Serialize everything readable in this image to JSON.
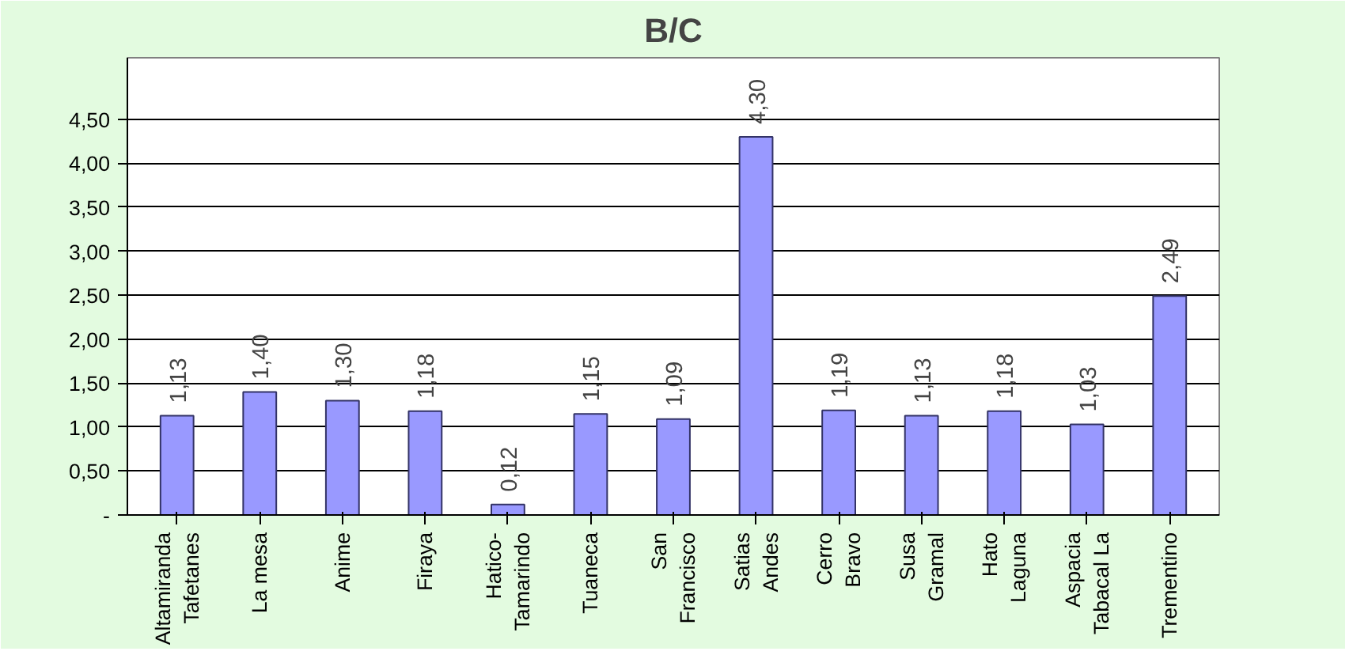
{
  "chart_data": {
    "type": "bar",
    "title": "B/C",
    "categories": [
      "Altamiranda\nTafetanes",
      "La mesa",
      "Anime",
      "Firaya",
      "Hatico-\nTamarindo",
      "Tuaneca",
      "San\nFrancisco",
      "Satias\nAndes",
      "Cerro\nBravo",
      "Susa\nGramal",
      "Hato\nLaguna",
      "Aspacia\nTabacal La",
      "Trementino"
    ],
    "values": [
      1.13,
      1.4,
      1.3,
      1.18,
      0.12,
      1.15,
      1.09,
      4.3,
      1.19,
      1.13,
      1.18,
      1.03,
      2.49
    ],
    "value_labels": [
      "1,13",
      "1,40",
      "1,30",
      "1,18",
      "0,12",
      "1,15",
      "1,09",
      "4,30",
      "1,19",
      "1,13",
      "1,18",
      "1,03",
      "2,49"
    ],
    "color": "#9999ff",
    "ylim": [
      0,
      4.5
    ],
    "yticks": [
      {
        "value": 0,
        "label": "-"
      },
      {
        "value": 0.5,
        "label": "0,50"
      },
      {
        "value": 1,
        "label": "1,00"
      },
      {
        "value": 1.5,
        "label": "1,50"
      },
      {
        "value": 2,
        "label": "2,00"
      },
      {
        "value": 2.5,
        "label": "2,50"
      },
      {
        "value": 3,
        "label": "3,00"
      },
      {
        "value": 3.5,
        "label": "3,50"
      },
      {
        "value": 4,
        "label": "4,00"
      },
      {
        "value": 4.5,
        "label": "4,50"
      }
    ],
    "grid": "y"
  }
}
